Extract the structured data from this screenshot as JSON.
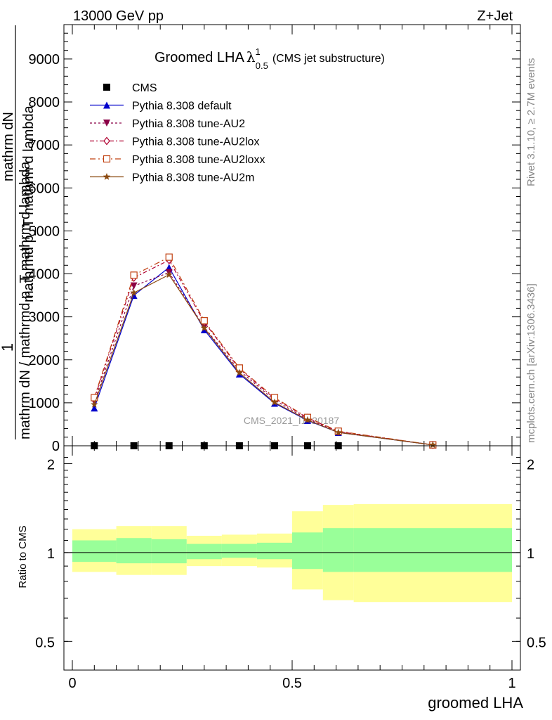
{
  "header": {
    "left": "13000 GeV pp",
    "right": "Z+Jet"
  },
  "side_labels": {
    "rivet": "Rivet 3.1.10, ≥ 2.7M events",
    "mcplots": "mcplots.cern.ch [arXiv:1306.3436]"
  },
  "watermark": "CMS_2021_I1920187",
  "chart_data": [
    {
      "type": "line",
      "title": "Groomed LHA",
      "title_symbol": "λ",
      "title_sup": "1",
      "title_sub": "0.5",
      "title_note": "(CMS jet substructure)",
      "ylabel_top": "1",
      "ylabel_bottom": "mathrm dN / mathrmd p_T mathrm d lambda",
      "ylabel_den": "mathrm dN",
      "ylabel_den2": "mathrmd p_T mathrm d lambda",
      "xlim": [
        0,
        1
      ],
      "ylim": [
        0,
        9800
      ],
      "yticks": [
        0,
        1000,
        2000,
        3000,
        4000,
        5000,
        6000,
        7000,
        8000,
        9000
      ],
      "ytick_labels": [
        "0",
        "1000",
        "2000",
        "3000",
        "4000",
        "5000",
        "6000",
        "7000",
        "8000",
        "9000"
      ],
      "legend_position": "top-left",
      "x": [
        0.05,
        0.14,
        0.22,
        0.3,
        0.38,
        0.46,
        0.535,
        0.605,
        0.82
      ],
      "series": [
        {
          "name": "CMS",
          "color": "#000000",
          "marker": "square",
          "values": [
            0,
            0,
            0,
            0,
            0,
            0,
            0,
            0,
            null
          ]
        },
        {
          "name": "Pythia 8.308 default",
          "color": "#0000cc",
          "marker": "triangle-up",
          "dash": "",
          "values": [
            880,
            3500,
            4150,
            2700,
            1670,
            990,
            590,
            310,
            20
          ]
        },
        {
          "name": "Pythia 8.308 tune-AU2",
          "color": "#8b0046",
          "marker": "triangle-down",
          "dash": "3,3",
          "values": [
            1020,
            3720,
            4030,
            2760,
            1750,
            1060,
            620,
            320,
            20
          ]
        },
        {
          "name": "Pythia 8.308 tune-AU2lox",
          "color": "#b00030",
          "marker": "diamond-open",
          "dash": "6,3,2,3",
          "values": [
            1090,
            3910,
            4320,
            2880,
            1790,
            1100,
            650,
            330,
            20
          ]
        },
        {
          "name": "Pythia 8.308 tune-AU2loxx",
          "color": "#c04010",
          "marker": "square-open",
          "dash": "8,4,2,4",
          "values": [
            1120,
            3970,
            4390,
            2910,
            1810,
            1120,
            660,
            340,
            20
          ]
        },
        {
          "name": "Pythia 8.308 tune-AU2m",
          "color": "#8b4a10",
          "marker": "star",
          "dash": "",
          "values": [
            960,
            3560,
            3980,
            2740,
            1700,
            1010,
            600,
            310,
            20
          ]
        }
      ]
    },
    {
      "type": "area",
      "ylabel": "Ratio to CMS",
      "xlabel": "groomed LHA",
      "xlim": [
        0,
        1
      ],
      "ylim": [
        0.4,
        2.3
      ],
      "yscale": "log",
      "yticks": [
        0.5,
        1,
        2
      ],
      "ytick_labels": [
        "0.5",
        "1",
        "2"
      ],
      "xticks": [
        0,
        0.5,
        1
      ],
      "xtick_labels": [
        "0",
        "0.5",
        "1"
      ],
      "bins": [
        0,
        0.1,
        0.18,
        0.26,
        0.34,
        0.42,
        0.5,
        0.57,
        0.64,
        1.0
      ],
      "stat_band": {
        "color": "#99ff99",
        "low": [
          0.93,
          0.92,
          0.92,
          0.95,
          0.96,
          0.95,
          0.88,
          0.86,
          0.86
        ],
        "high": [
          1.1,
          1.12,
          1.11,
          1.07,
          1.07,
          1.08,
          1.17,
          1.21,
          1.21
        ]
      },
      "syst_band": {
        "color": "#ffff99",
        "low": [
          0.86,
          0.84,
          0.84,
          0.9,
          0.9,
          0.89,
          0.75,
          0.69,
          0.68
        ],
        "high": [
          1.2,
          1.23,
          1.23,
          1.14,
          1.15,
          1.16,
          1.38,
          1.45,
          1.46
        ]
      }
    }
  ]
}
